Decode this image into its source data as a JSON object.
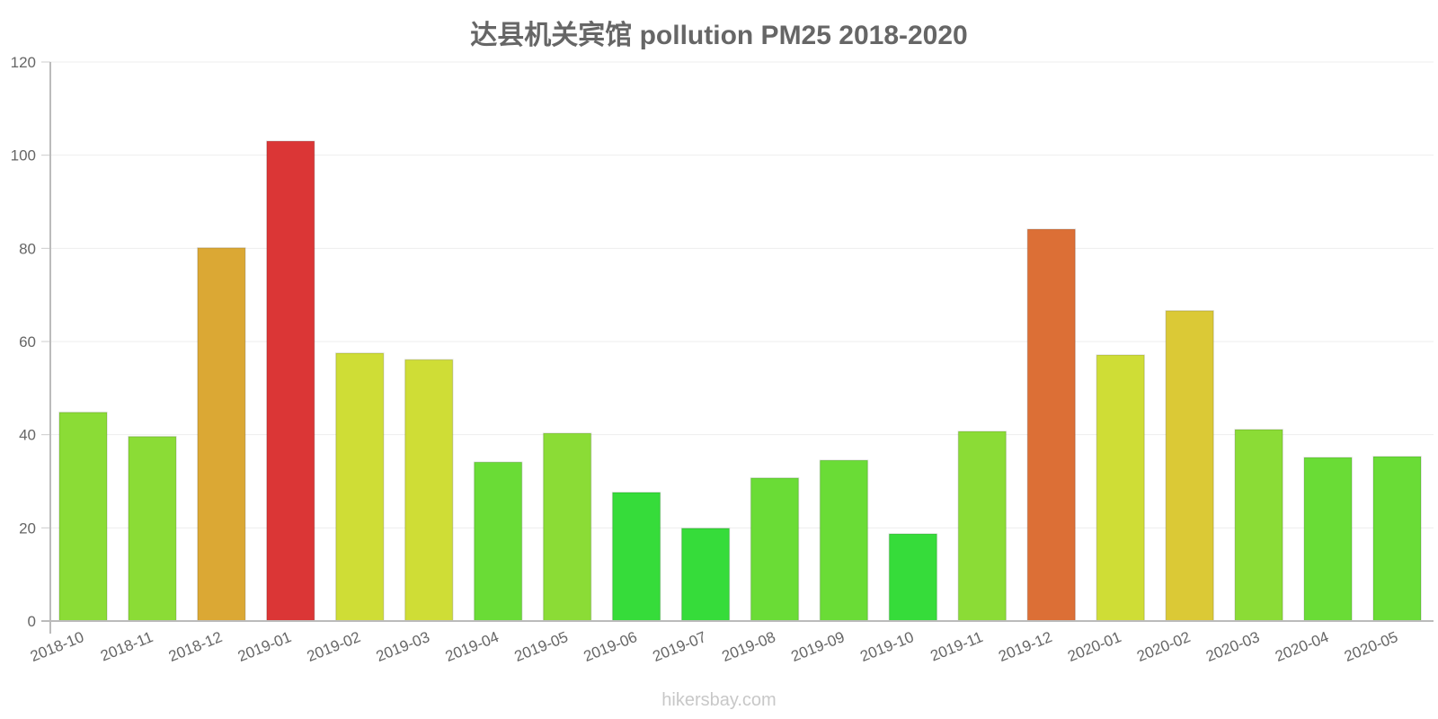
{
  "chart_data": {
    "type": "bar",
    "title": "达县机关宾馆 pollution PM25 2018-2020",
    "xlabel": "",
    "ylabel": "",
    "ylim": [
      0,
      120
    ],
    "yticks": [
      0,
      20,
      40,
      60,
      80,
      100,
      120
    ],
    "grid": true,
    "legend": null,
    "categories": [
      "2018-10",
      "2018-11",
      "2018-12",
      "2019-01",
      "2019-02",
      "2019-03",
      "2019-04",
      "2019-05",
      "2019-06",
      "2019-07",
      "2019-08",
      "2019-09",
      "2019-10",
      "2019-11",
      "2019-12",
      "2020-01",
      "2020-02",
      "2020-03",
      "2020-04",
      "2020-05"
    ],
    "values": [
      44.8,
      39.6,
      80.1,
      103.0,
      57.5,
      56.1,
      34.1,
      40.3,
      27.6,
      19.9,
      30.7,
      34.5,
      18.7,
      40.7,
      84.1,
      57.1,
      66.6,
      41.1,
      35.1,
      35.3
    ],
    "colors": [
      "#8bdc36",
      "#8bdc36",
      "#dba834",
      "#db3636",
      "#cfdd36",
      "#cfdd36",
      "#6adc36",
      "#8bdc36",
      "#36dc3a",
      "#36dc3a",
      "#6adc36",
      "#6adc36",
      "#36dc3a",
      "#8bdc36",
      "#dc6f36",
      "#cfdd36",
      "#dbc936",
      "#8bdc36",
      "#6adc36",
      "#6adc36"
    ]
  },
  "header": {
    "title": "达县机关宾馆 pollution PM25 2018-2020"
  },
  "footer": {
    "watermark": "hikersbay.com"
  }
}
